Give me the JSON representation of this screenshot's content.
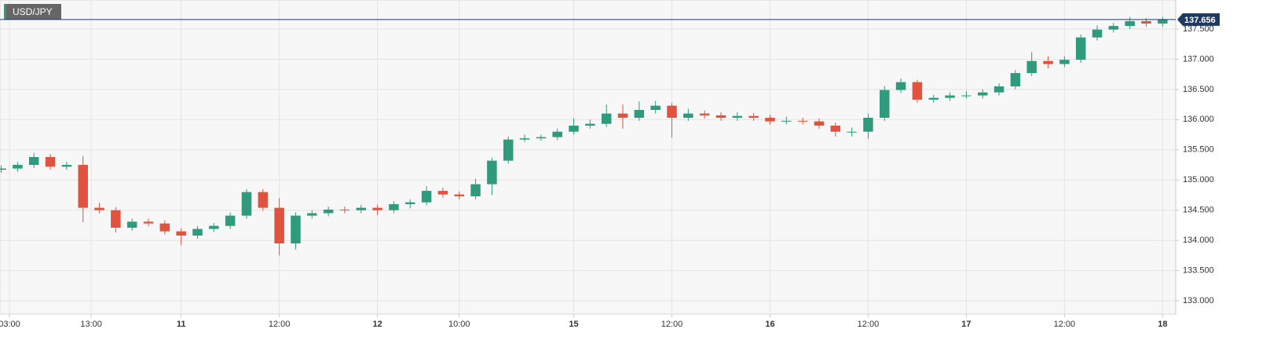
{
  "chart_data": {
    "type": "candlestick",
    "title": "USD/JPY",
    "x": [
      -1,
      1,
      3,
      5,
      7,
      9,
      11,
      13,
      15,
      17,
      19,
      21,
      23,
      25,
      27,
      29,
      31,
      33,
      35,
      37,
      39,
      41,
      43,
      45,
      47,
      49,
      51,
      53,
      55,
      57,
      59,
      61,
      63,
      65,
      67,
      69,
      71,
      73,
      75,
      77,
      79,
      81,
      83,
      85,
      87,
      89,
      91,
      93,
      95,
      97,
      99,
      101,
      103,
      105,
      107,
      109,
      111,
      113,
      115,
      117,
      119,
      121,
      123,
      125,
      127,
      129,
      131,
      133,
      135,
      137,
      139,
      141
    ],
    "open": [
      135.17,
      135.19,
      135.25,
      135.38,
      135.22,
      135.25,
      134.54,
      134.5,
      134.21,
      134.31,
      134.28,
      134.15,
      134.08,
      134.19,
      134.24,
      134.41,
      134.8,
      134.54,
      133.95,
      134.41,
      134.45,
      134.51,
      134.5,
      134.54,
      134.5,
      134.6,
      134.63,
      134.82,
      134.76,
      134.73,
      134.93,
      135.32,
      135.67,
      135.69,
      135.71,
      135.8,
      135.9,
      135.93,
      136.1,
      136.03,
      136.16,
      136.23,
      136.03,
      136.1,
      136.07,
      136.03,
      136.06,
      136.03,
      135.97,
      135.98,
      135.97,
      135.9,
      135.8,
      135.8,
      136.03,
      136.49,
      136.62,
      136.33,
      136.36,
      136.4,
      136.4,
      136.45,
      136.55,
      136.77,
      136.97,
      136.92,
      136.99,
      137.36,
      137.49,
      137.55,
      137.63,
      137.59
    ],
    "high": [
      135.24,
      135.3,
      135.45,
      135.43,
      135.3,
      135.4,
      134.62,
      134.55,
      134.36,
      134.36,
      134.33,
      134.2,
      134.24,
      134.29,
      134.46,
      134.85,
      134.85,
      134.7,
      134.46,
      134.5,
      134.56,
      134.56,
      134.59,
      134.59,
      134.65,
      134.68,
      134.9,
      134.87,
      134.81,
      135.02,
      135.37,
      135.72,
      135.75,
      135.75,
      135.85,
      136.02,
      136.0,
      136.25,
      136.25,
      136.3,
      136.31,
      136.28,
      136.18,
      136.15,
      136.12,
      136.12,
      136.11,
      136.08,
      136.05,
      136.03,
      136.02,
      135.95,
      135.87,
      136.1,
      136.55,
      136.68,
      136.66,
      136.41,
      136.45,
      136.47,
      136.5,
      136.6,
      136.82,
      137.12,
      137.05,
      137.05,
      137.41,
      137.56,
      137.6,
      137.7,
      137.68,
      137.7
    ],
    "low": [
      135.12,
      135.14,
      135.2,
      135.17,
      135.17,
      134.3,
      134.45,
      134.13,
      134.16,
      134.23,
      134.1,
      133.92,
      134.03,
      134.14,
      134.19,
      134.36,
      134.49,
      133.75,
      133.85,
      134.36,
      134.4,
      134.45,
      134.45,
      134.42,
      134.45,
      134.53,
      134.58,
      134.71,
      134.68,
      134.68,
      134.75,
      135.27,
      135.63,
      135.65,
      135.66,
      135.75,
      135.85,
      135.88,
      135.85,
      135.98,
      136.1,
      135.7,
      135.98,
      136.02,
      135.98,
      135.98,
      135.98,
      135.92,
      135.92,
      135.92,
      135.85,
      135.72,
      135.72,
      135.68,
      135.98,
      136.44,
      136.28,
      136.28,
      136.31,
      136.35,
      136.35,
      136.4,
      136.5,
      136.72,
      136.85,
      136.87,
      136.94,
      137.31,
      137.44,
      137.5,
      137.54,
      137.54
    ],
    "close": [
      135.19,
      135.25,
      135.38,
      135.22,
      135.25,
      134.54,
      134.5,
      134.21,
      134.31,
      134.28,
      134.15,
      134.08,
      134.19,
      134.24,
      134.41,
      134.8,
      134.54,
      133.95,
      134.41,
      134.45,
      134.51,
      134.5,
      134.54,
      134.5,
      134.6,
      134.63,
      134.82,
      134.76,
      134.73,
      134.93,
      135.32,
      135.67,
      135.69,
      135.71,
      135.8,
      135.9,
      135.93,
      136.1,
      136.03,
      136.16,
      136.23,
      136.03,
      136.1,
      136.07,
      136.03,
      136.06,
      136.03,
      135.97,
      135.98,
      135.97,
      135.9,
      135.8,
      135.8,
      136.03,
      136.49,
      136.62,
      136.33,
      136.36,
      136.4,
      136.4,
      136.45,
      136.55,
      136.77,
      136.97,
      136.92,
      136.99,
      137.36,
      137.49,
      137.55,
      137.63,
      137.59,
      137.656
    ],
    "up_color": "#2e9b7c",
    "down_color": "#e0533f",
    "last_color": "#1f3a5f",
    "xlim": [
      -1.15,
      142.6
    ],
    "xticks": [
      {
        "value": 0,
        "label": "03:00"
      },
      {
        "value": 10,
        "label": "13:00"
      },
      {
        "value": 21,
        "label": "11"
      },
      {
        "value": 33,
        "label": "12:00"
      },
      {
        "value": 45,
        "label": "12"
      },
      {
        "value": 55,
        "label": "10:00"
      },
      {
        "value": 69,
        "label": "15"
      },
      {
        "value": 81,
        "label": "12:00"
      },
      {
        "value": 93,
        "label": "16"
      },
      {
        "value": 105,
        "label": "12:00"
      },
      {
        "value": 117,
        "label": "17"
      },
      {
        "value": 129,
        "label": "12:00"
      },
      {
        "value": 141,
        "label": "18"
      }
    ],
    "ylim": [
      132.78,
      137.98
    ],
    "yticks": [
      {
        "value": 133,
        "label": "133.000"
      },
      {
        "value": 133.5,
        "label": "133.500"
      },
      {
        "value": 134,
        "label": "134.000"
      },
      {
        "value": 134.5,
        "label": "134.500"
      },
      {
        "value": 135,
        "label": "135.000"
      },
      {
        "value": 135.5,
        "label": "135.500"
      },
      {
        "value": 136,
        "label": "136.000"
      },
      {
        "value": 136.5,
        "label": "136.500"
      },
      {
        "value": 137,
        "label": "137.000"
      },
      {
        "value": 137.5,
        "label": "137.500"
      }
    ],
    "grid": true
  }
}
